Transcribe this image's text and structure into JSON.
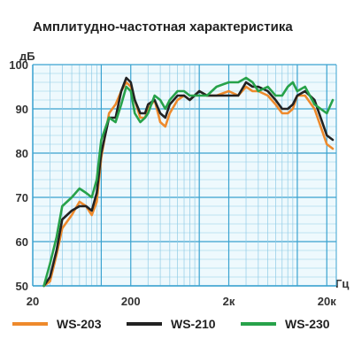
{
  "chart_data": {
    "type": "line",
    "title": "Амплитудно-частотная характеристика",
    "ylabel": "дБ",
    "xlabel": "Гц",
    "x_scale": "log",
    "xlim": [
      20,
      25000
    ],
    "ylim": [
      50,
      100
    ],
    "x_ticks": [
      {
        "value": 20,
        "label": "20"
      },
      {
        "value": 200,
        "label": "200"
      },
      {
        "value": 2000,
        "label": "2к"
      },
      {
        "value": 20000,
        "label": "20к"
      }
    ],
    "y_ticks": [
      50,
      60,
      70,
      80,
      90,
      100
    ],
    "grid": true,
    "legend_position": "bottom",
    "series": [
      {
        "name": "WS-203",
        "color": "#ee8a2c",
        "x": [
          26,
          30,
          35,
          40,
          50,
          60,
          70,
          80,
          90,
          100,
          120,
          140,
          160,
          180,
          200,
          220,
          250,
          280,
          300,
          350,
          400,
          450,
          500,
          600,
          700,
          800,
          1000,
          1200,
          1500,
          2000,
          2500,
          3000,
          3500,
          4000,
          5000,
          6000,
          7000,
          8000,
          9000,
          10000,
          12000,
          15000,
          20000,
          23000
        ],
        "y": [
          50,
          51,
          57,
          63,
          66,
          69,
          68,
          66,
          69,
          79,
          89,
          91,
          94,
          96,
          95,
          92,
          88,
          88,
          90,
          92,
          87,
          86,
          89,
          92,
          93,
          92,
          94,
          93,
          93,
          94,
          93,
          95,
          94,
          94,
          93,
          91,
          89,
          89,
          90,
          93,
          93,
          90,
          82,
          81
        ]
      },
      {
        "name": "WS-210",
        "color": "#222222",
        "x": [
          26,
          30,
          35,
          40,
          50,
          60,
          70,
          80,
          90,
          100,
          120,
          140,
          160,
          180,
          200,
          220,
          250,
          280,
          300,
          350,
          400,
          450,
          500,
          600,
          700,
          800,
          1000,
          1200,
          1500,
          2000,
          2500,
          3000,
          3500,
          4000,
          5000,
          6000,
          7000,
          8000,
          9000,
          10000,
          12000,
          15000,
          20000,
          23000
        ],
        "y": [
          50,
          52,
          58,
          65,
          67,
          68,
          68,
          67,
          71,
          80,
          88,
          88,
          94,
          97,
          96,
          92,
          89,
          89,
          91,
          92,
          89,
          88,
          91,
          93,
          93,
          92,
          94,
          93,
          93,
          93,
          93,
          96,
          95,
          95,
          94,
          92,
          90,
          90,
          91,
          93,
          94,
          92,
          84,
          83
        ]
      },
      {
        "name": "WS-230",
        "color": "#27a24a",
        "x": [
          26,
          30,
          35,
          40,
          50,
          60,
          70,
          80,
          90,
          100,
          120,
          140,
          160,
          180,
          200,
          220,
          250,
          280,
          300,
          350,
          400,
          450,
          500,
          600,
          700,
          800,
          1000,
          1200,
          1500,
          2000,
          2500,
          3000,
          3500,
          4000,
          5000,
          6000,
          7000,
          8000,
          9000,
          10000,
          12000,
          15000,
          20000,
          23000
        ],
        "y": [
          50,
          55,
          61,
          68,
          70,
          72,
          71,
          70,
          74,
          83,
          88,
          87,
          91,
          95,
          94,
          89,
          87,
          88,
          89,
          93,
          92,
          90,
          92,
          94,
          94,
          93,
          93,
          93,
          95,
          96,
          96,
          97,
          96,
          94,
          95,
          93,
          93,
          95,
          96,
          94,
          95,
          91,
          89,
          92
        ]
      }
    ]
  }
}
